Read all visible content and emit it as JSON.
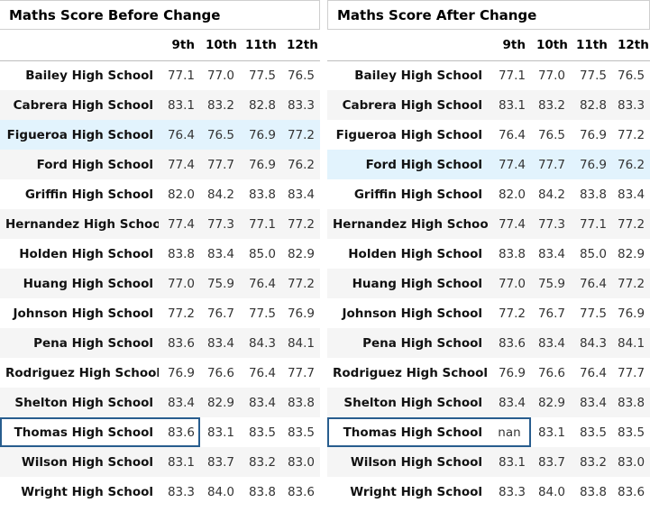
{
  "before": {
    "title": "Maths Score Before Change",
    "columns": [
      "9th",
      "10th",
      "11th",
      "12th"
    ],
    "rows": [
      {
        "school": "Bailey High School",
        "values": [
          "77.1",
          "77.0",
          "77.5",
          "76.5"
        ]
      },
      {
        "school": "Cabrera High School",
        "values": [
          "83.1",
          "83.2",
          "82.8",
          "83.3"
        ]
      },
      {
        "school": "Figueroa High School",
        "values": [
          "76.4",
          "76.5",
          "76.9",
          "77.2"
        ]
      },
      {
        "school": "Ford High School",
        "values": [
          "77.4",
          "77.7",
          "76.9",
          "76.2"
        ]
      },
      {
        "school": "Griffin High School",
        "values": [
          "82.0",
          "84.2",
          "83.8",
          "83.4"
        ]
      },
      {
        "school": "Hernandez High School",
        "values": [
          "77.4",
          "77.3",
          "77.1",
          "77.2"
        ]
      },
      {
        "school": "Holden High School",
        "values": [
          "83.8",
          "83.4",
          "85.0",
          "82.9"
        ]
      },
      {
        "school": "Huang High School",
        "values": [
          "77.0",
          "75.9",
          "76.4",
          "77.2"
        ]
      },
      {
        "school": "Johnson High School",
        "values": [
          "77.2",
          "76.7",
          "77.5",
          "76.9"
        ]
      },
      {
        "school": "Pena High School",
        "values": [
          "83.6",
          "83.4",
          "84.3",
          "84.1"
        ]
      },
      {
        "school": "Rodriguez High School",
        "values": [
          "76.9",
          "76.6",
          "76.4",
          "77.7"
        ]
      },
      {
        "school": "Shelton High School",
        "values": [
          "83.4",
          "82.9",
          "83.4",
          "83.8"
        ]
      },
      {
        "school": "Thomas High School",
        "values": [
          "83.6",
          "83.1",
          "83.5",
          "83.5"
        ]
      },
      {
        "school": "Wilson High School",
        "values": [
          "83.1",
          "83.7",
          "83.2",
          "83.0"
        ]
      },
      {
        "school": "Wright High School",
        "values": [
          "83.3",
          "84.0",
          "83.8",
          "83.6"
        ]
      }
    ]
  },
  "after": {
    "title": "Maths Score After Change",
    "columns": [
      "9th",
      "10th",
      "11th",
      "12th"
    ],
    "rows": [
      {
        "school": "Bailey High School",
        "values": [
          "77.1",
          "77.0",
          "77.5",
          "76.5"
        ]
      },
      {
        "school": "Cabrera High School",
        "values": [
          "83.1",
          "83.2",
          "82.8",
          "83.3"
        ]
      },
      {
        "school": "Figueroa High School",
        "values": [
          "76.4",
          "76.5",
          "76.9",
          "77.2"
        ]
      },
      {
        "school": "Ford High School",
        "values": [
          "77.4",
          "77.7",
          "76.9",
          "76.2"
        ]
      },
      {
        "school": "Griffin High School",
        "values": [
          "82.0",
          "84.2",
          "83.8",
          "83.4"
        ]
      },
      {
        "school": "Hernandez High School",
        "values": [
          "77.4",
          "77.3",
          "77.1",
          "77.2"
        ]
      },
      {
        "school": "Holden High School",
        "values": [
          "83.8",
          "83.4",
          "85.0",
          "82.9"
        ]
      },
      {
        "school": "Huang High School",
        "values": [
          "77.0",
          "75.9",
          "76.4",
          "77.2"
        ]
      },
      {
        "school": "Johnson High School",
        "values": [
          "77.2",
          "76.7",
          "77.5",
          "76.9"
        ]
      },
      {
        "school": "Pena High School",
        "values": [
          "83.6",
          "83.4",
          "84.3",
          "84.1"
        ]
      },
      {
        "school": "Rodriguez High School",
        "values": [
          "76.9",
          "76.6",
          "76.4",
          "77.7"
        ]
      },
      {
        "school": "Shelton High School",
        "values": [
          "83.4",
          "82.9",
          "83.4",
          "83.8"
        ]
      },
      {
        "school": "Thomas High School",
        "values": [
          "nan",
          "83.1",
          "83.5",
          "83.5"
        ]
      },
      {
        "school": "Wilson High School",
        "values": [
          "83.1",
          "83.7",
          "83.2",
          "83.0"
        ]
      },
      {
        "school": "Wright High School",
        "values": [
          "83.3",
          "84.0",
          "83.8",
          "83.6"
        ]
      }
    ]
  },
  "colors": {
    "hover_row": "#e2f3fd",
    "stripe_row": "#f5f5f5",
    "selection_outline": "#285d8e"
  }
}
